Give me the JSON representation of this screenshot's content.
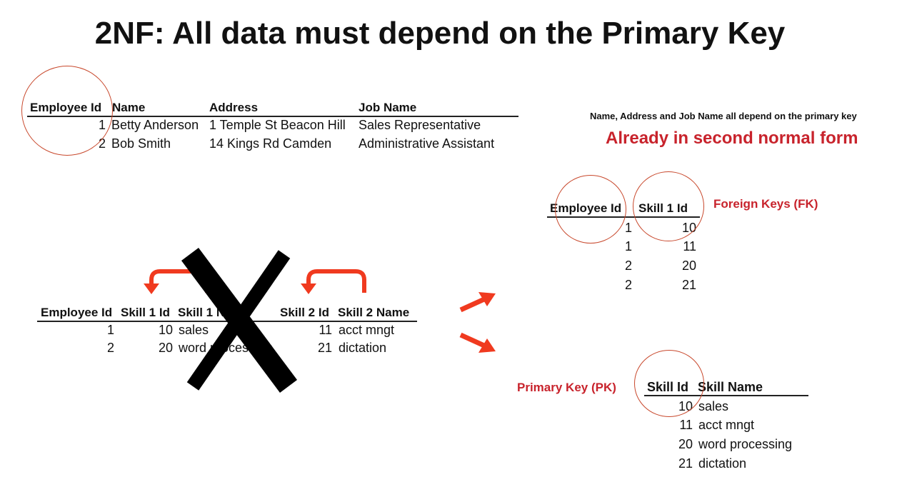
{
  "title": "2NF: All data must depend on the Primary Key",
  "colors": {
    "accent_red": "#c8232c",
    "arrow_red": "#f03a1f",
    "circle": "#c8482c"
  },
  "table1": {
    "headers": [
      "Employee Id",
      "Name",
      "Address",
      "Job Name"
    ],
    "rows": [
      [
        "1",
        "Betty Anderson",
        "1 Temple St Beacon Hill",
        "Sales Representative"
      ],
      [
        "2",
        "Bob Smith",
        "14 Kings Rd Camden",
        "Administrative Assistant"
      ]
    ]
  },
  "notes": {
    "depend": "Name, Address and Job Name all depend on the primary key",
    "already": "Already in second normal form",
    "fk": "Foreign Keys (FK)",
    "pk": "Primary Key (PK)"
  },
  "table2": {
    "headers": [
      "Employee Id",
      "Skill 1 Id",
      "Skill 1 Name",
      "Skill 2 Id",
      "Skill 2 Name"
    ],
    "rows": [
      [
        "1",
        "10",
        "sales",
        "11",
        "acct mngt"
      ],
      [
        "2",
        "20",
        "word processing",
        "21",
        "dictation"
      ]
    ]
  },
  "table3": {
    "headers": [
      "Employee Id",
      "Skill 1 Id"
    ],
    "rows": [
      [
        "1",
        "10"
      ],
      [
        "1",
        "11"
      ],
      [
        "2",
        "20"
      ],
      [
        "2",
        "21"
      ]
    ]
  },
  "table4": {
    "headers": [
      "Skill Id",
      "Skill Name"
    ],
    "rows": [
      [
        "10",
        "sales"
      ],
      [
        "11",
        "acct mngt"
      ],
      [
        "20",
        "word processing"
      ],
      [
        "21",
        "dictation"
      ]
    ]
  }
}
